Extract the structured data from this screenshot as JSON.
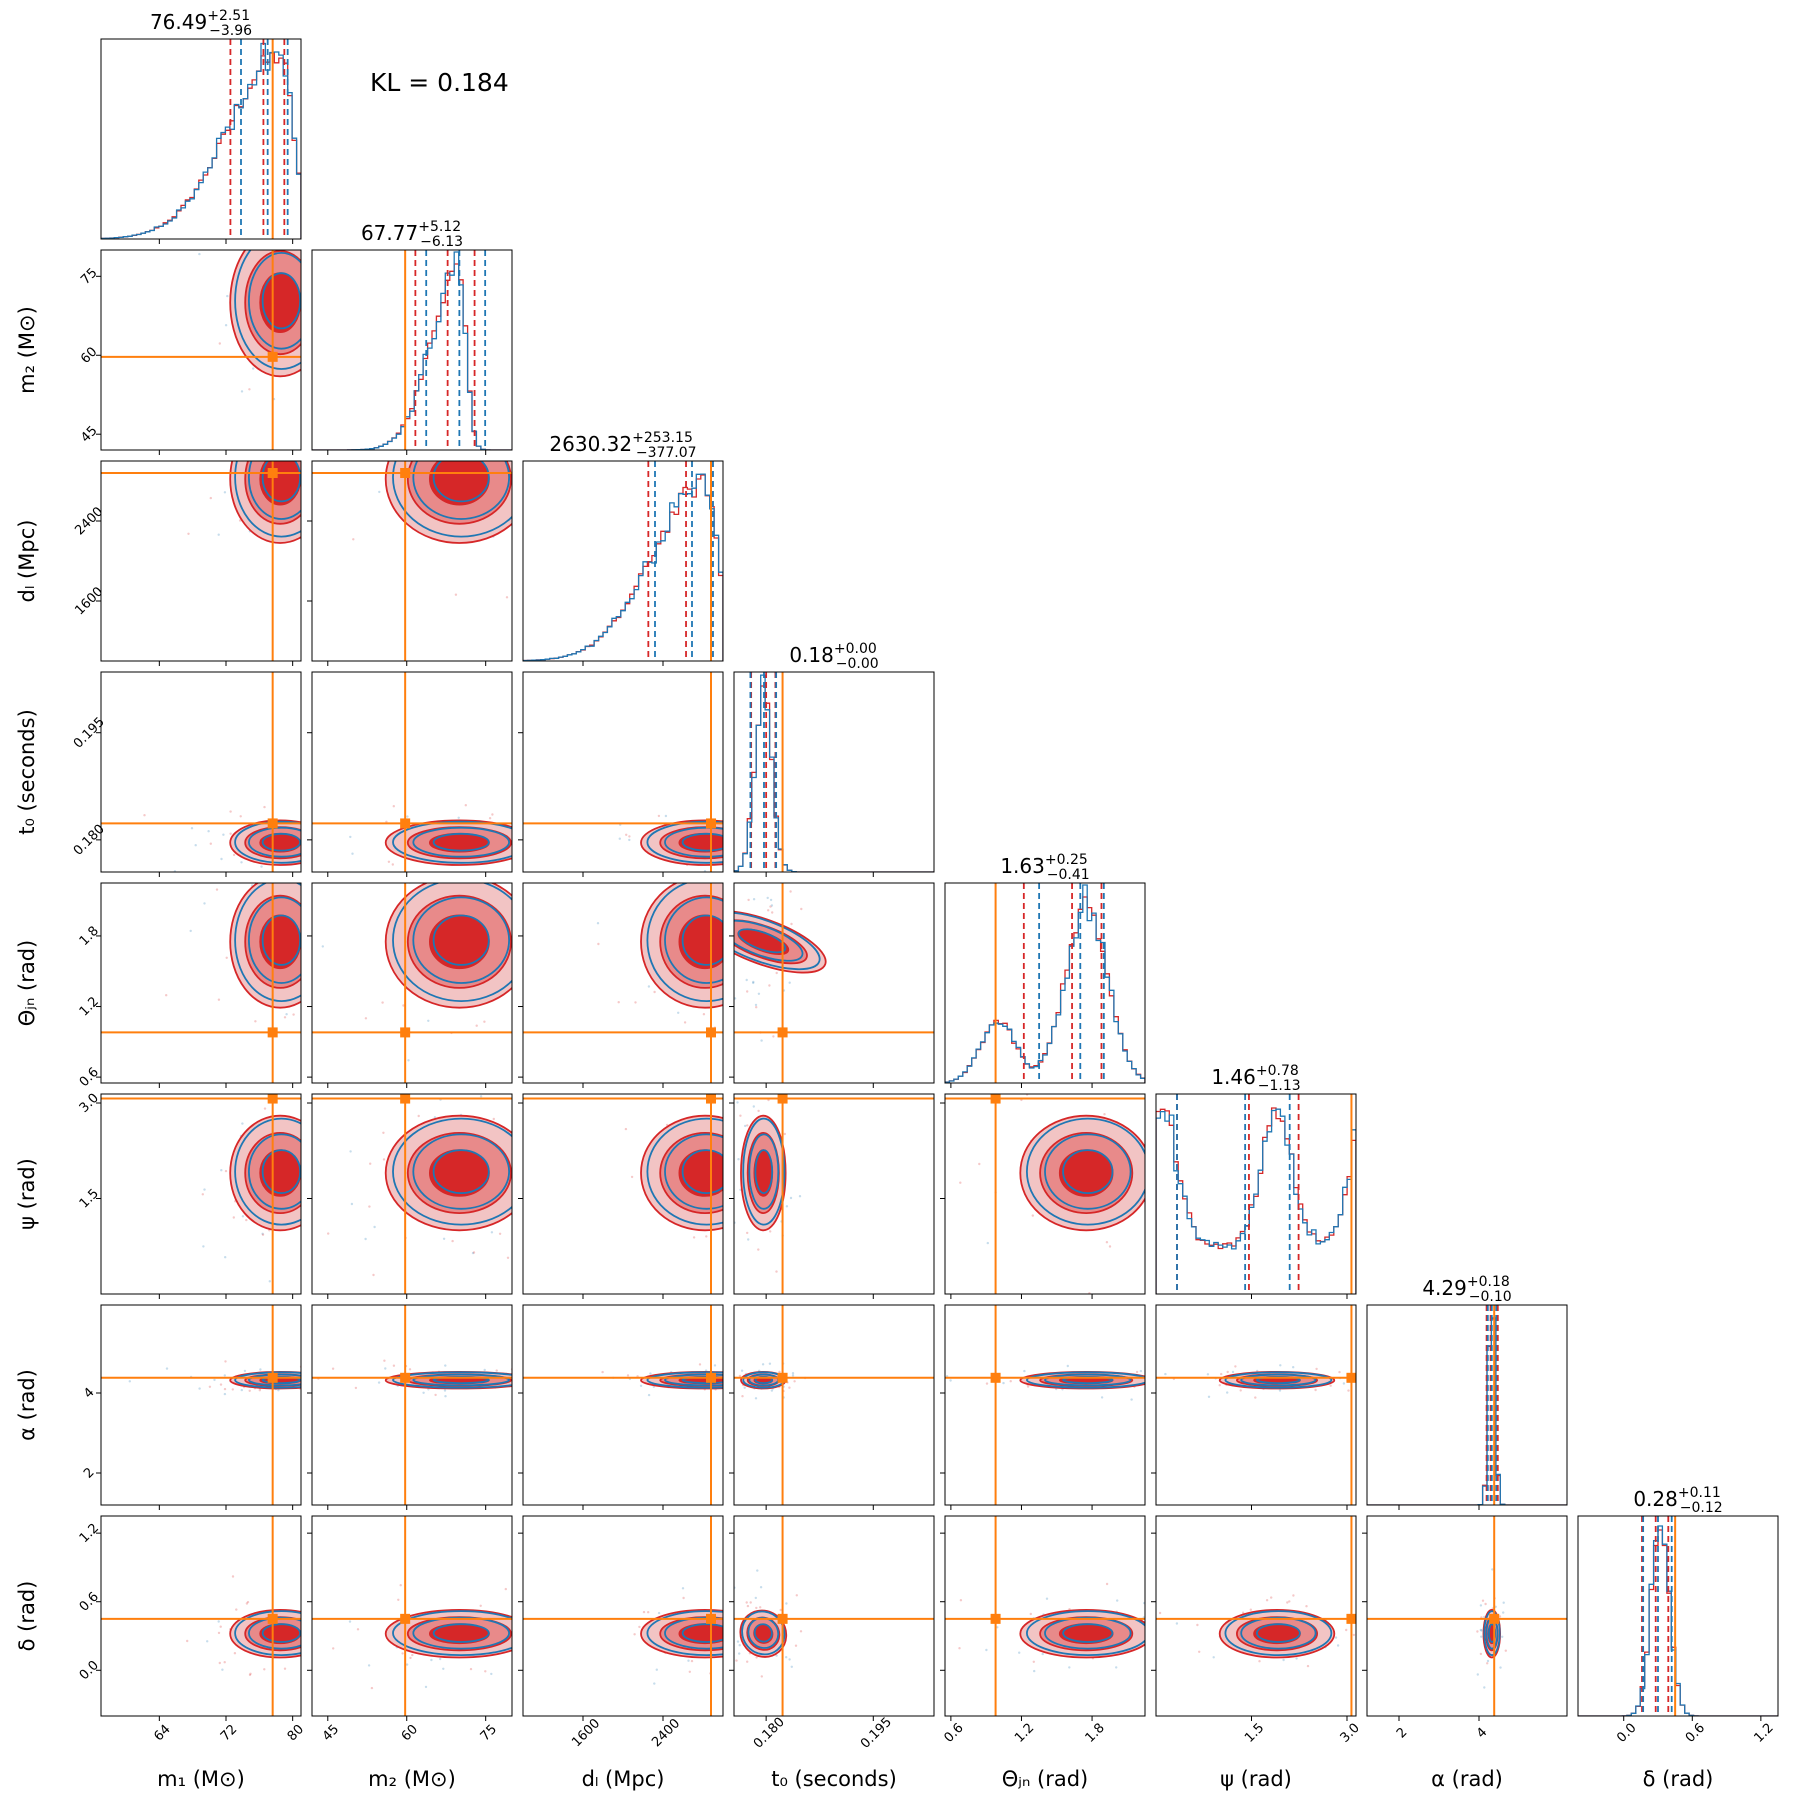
{
  "chart_data": {
    "type": "corner",
    "annotation": "KL = 0.184",
    "colors": {
      "series_a": "#d62728",
      "series_b": "#1f77b4",
      "truth": "#ff7f0e"
    },
    "params": [
      {
        "key": "m1",
        "label": "m₁ (M⊙)",
        "ticks": [
          64,
          72,
          80
        ],
        "ticklabels": [
          "64",
          "72",
          "80"
        ],
        "range": [
          57,
          81
        ],
        "truth": 77.6,
        "median": 76.49,
        "plus": "2.51",
        "minus": "3.96",
        "title_med": "76.49",
        "title_plus": "+2.51",
        "title_minus": "−3.96",
        "q": [
          72.53,
          76.49,
          79.0
        ],
        "q2": [
          73.8,
          77.0,
          79.4
        ],
        "peak": 78.5,
        "width": 4.0
      },
      {
        "key": "m2",
        "label": "m₂ (M⊙)",
        "ticks": [
          45,
          60,
          75
        ],
        "ticklabels": [
          "45",
          "60",
          "75"
        ],
        "range": [
          42,
          80
        ],
        "truth": 59.7,
        "median": 67.77,
        "plus": "5.12",
        "minus": "6.13",
        "title_med": "67.77",
        "title_plus": "+5.12",
        "title_minus": "−6.13",
        "q": [
          61.64,
          67.77,
          72.89
        ],
        "q2": [
          63.7,
          70.0,
          74.9
        ],
        "peak": 70.0,
        "width": 5.0
      },
      {
        "key": "dl",
        "label": "dₗ (Mpc)",
        "ticks": [
          1600,
          2400
        ],
        "ticklabels": [
          "1600",
          "2400"
        ],
        "range": [
          1000,
          3000
        ],
        "truth": 2880,
        "median": 2630.32,
        "plus": "253.15",
        "minus": "377.07",
        "title_med": "2630.32",
        "title_plus": "+253.15",
        "title_minus": "−377.07",
        "q": [
          2253.25,
          2630.32,
          2883.47
        ],
        "q2": [
          2320,
          2690,
          2900
        ],
        "peak": 2820,
        "width": 300
      },
      {
        "key": "t0",
        "label": "t₀ (seconds)",
        "ticks": [
          0.18,
          0.195
        ],
        "ticklabels": [
          "0.180",
          "0.195"
        ],
        "range": [
          0.1755,
          0.2035
        ],
        "truth": 0.1823,
        "median": 0.18,
        "plus": "0.00",
        "minus": "0.00",
        "title_med": "0.18",
        "title_plus": "+0.00",
        "title_minus": "−0.00",
        "q": [
          0.1779,
          0.18,
          0.1813
        ],
        "q2": [
          0.1778,
          0.1797,
          0.1814
        ],
        "peak": 0.1796,
        "width": 0.0012
      },
      {
        "key": "theta",
        "label": "Θⱼₙ (rad)",
        "ticks": [
          0.6,
          1.2,
          1.8
        ],
        "ticklabels": [
          "0.6",
          "1.2",
          "1.8"
        ],
        "range": [
          0.55,
          2.25
        ],
        "truth": 0.98,
        "median": 1.63,
        "plus": "0.25",
        "minus": "0.41",
        "title_med": "1.63",
        "title_plus": "+0.25",
        "title_minus": "−0.41",
        "q": [
          1.22,
          1.63,
          1.88
        ],
        "q2": [
          1.35,
          1.7,
          1.9
        ],
        "peak": 1.75,
        "width": 0.18
      },
      {
        "key": "psi",
        "label": "ψ (rad)",
        "ticks": [
          1.5,
          3.0
        ],
        "ticklabels": [
          "1.5",
          "3.0"
        ],
        "range": [
          0,
          3.1416
        ],
        "truth": 3.07,
        "median": 1.46,
        "plus": "0.78",
        "minus": "1.13",
        "title_med": "1.46",
        "title_plus": "+0.78",
        "title_minus": "−1.13",
        "q": [
          0.33,
          1.46,
          2.24
        ],
        "q2": [
          0.33,
          1.4,
          2.1
        ],
        "peak": 1.9,
        "width": 0.25
      },
      {
        "key": "alpha",
        "label": "α (rad)",
        "ticks": [
          2,
          4
        ],
        "ticklabels": [
          "2",
          "4"
        ],
        "range": [
          1.2,
          6.2
        ],
        "truth": 4.38,
        "median": 4.29,
        "plus": "0.18",
        "minus": "0.10",
        "title_med": "4.29",
        "title_plus": "+0.18",
        "title_minus": "−0.10",
        "q": [
          4.19,
          4.29,
          4.47
        ],
        "q2": [
          4.22,
          4.32,
          4.43
        ],
        "peak": 4.32,
        "width": 0.08
      },
      {
        "key": "delta",
        "label": "δ (rad)",
        "ticks": [
          0.0,
          0.6,
          1.2
        ],
        "ticklabels": [
          "0.0",
          "0.6",
          "1.2"
        ],
        "range": [
          -0.4,
          1.35
        ],
        "truth": 0.45,
        "median": 0.28,
        "plus": "0.11",
        "minus": "0.12",
        "title_med": "0.28",
        "title_plus": "+0.11",
        "title_minus": "−0.12",
        "q": [
          0.16,
          0.28,
          0.39
        ],
        "q2": [
          0.17,
          0.3,
          0.42
        ],
        "peak": 0.32,
        "width": 0.08
      }
    ]
  }
}
